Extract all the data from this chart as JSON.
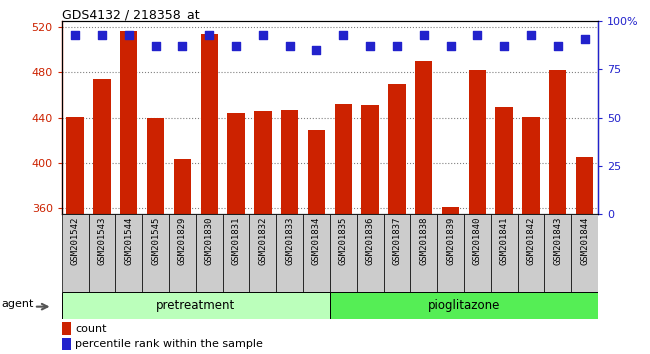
{
  "title": "GDS4132 / 218358_at",
  "samples": [
    "GSM201542",
    "GSM201543",
    "GSM201544",
    "GSM201545",
    "GSM201829",
    "GSM201830",
    "GSM201831",
    "GSM201832",
    "GSM201833",
    "GSM201834",
    "GSM201835",
    "GSM201836",
    "GSM201837",
    "GSM201838",
    "GSM201839",
    "GSM201840",
    "GSM201841",
    "GSM201842",
    "GSM201843",
    "GSM201844"
  ],
  "counts": [
    441,
    474,
    516,
    440,
    404,
    514,
    444,
    446,
    447,
    429,
    452,
    451,
    470,
    490,
    361,
    482,
    449,
    441,
    482,
    405
  ],
  "percentiles": [
    93,
    93,
    93,
    87,
    87,
    93,
    87,
    93,
    87,
    85,
    93,
    87,
    87,
    93,
    87,
    93,
    87,
    93,
    87,
    91
  ],
  "bar_color": "#cc2200",
  "dot_color": "#2222cc",
  "ylim_left": [
    355,
    525
  ],
  "ylim_right": [
    0,
    100
  ],
  "yticks_left": [
    360,
    400,
    440,
    480,
    520
  ],
  "yticks_right": [
    0,
    25,
    50,
    75,
    100
  ],
  "yticklabels_right": [
    "0",
    "25",
    "50",
    "75",
    "100%"
  ],
  "group_labels": [
    "pretreatment",
    "pioglitazone"
  ],
  "group_colors": [
    "#bbffbb",
    "#55ee55"
  ],
  "group_splits": [
    10,
    10
  ],
  "agent_label": "agent",
  "legend_count_label": "count",
  "legend_percentile_label": "percentile rank within the sample"
}
